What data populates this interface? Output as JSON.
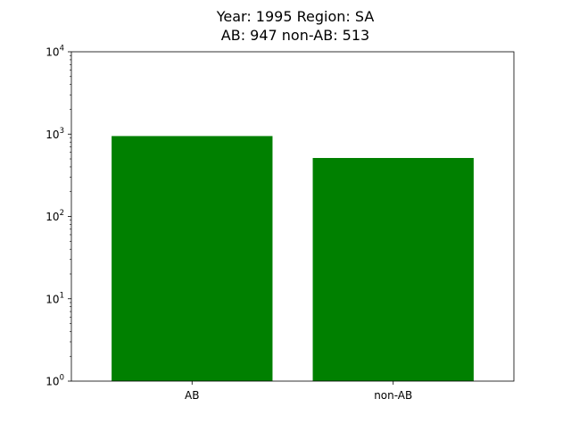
{
  "chart_data": {
    "type": "bar",
    "title_line1": "Year: 1995 Region: SA",
    "title_line2": "AB: 947 non-AB: 513",
    "categories": [
      "AB",
      "non-AB"
    ],
    "values": [
      947,
      513
    ],
    "xlabel": "",
    "ylabel": "",
    "yscale": "log",
    "ylim": [
      1,
      10000
    ],
    "yticks": [
      {
        "base": "10",
        "exp": "0",
        "value": 1
      },
      {
        "base": "10",
        "exp": "1",
        "value": 10
      },
      {
        "base": "10",
        "exp": "2",
        "value": 100
      },
      {
        "base": "10",
        "exp": "3",
        "value": 1000
      },
      {
        "base": "10",
        "exp": "4",
        "value": 10000
      }
    ],
    "grid": false,
    "bar_color": "#008000"
  }
}
